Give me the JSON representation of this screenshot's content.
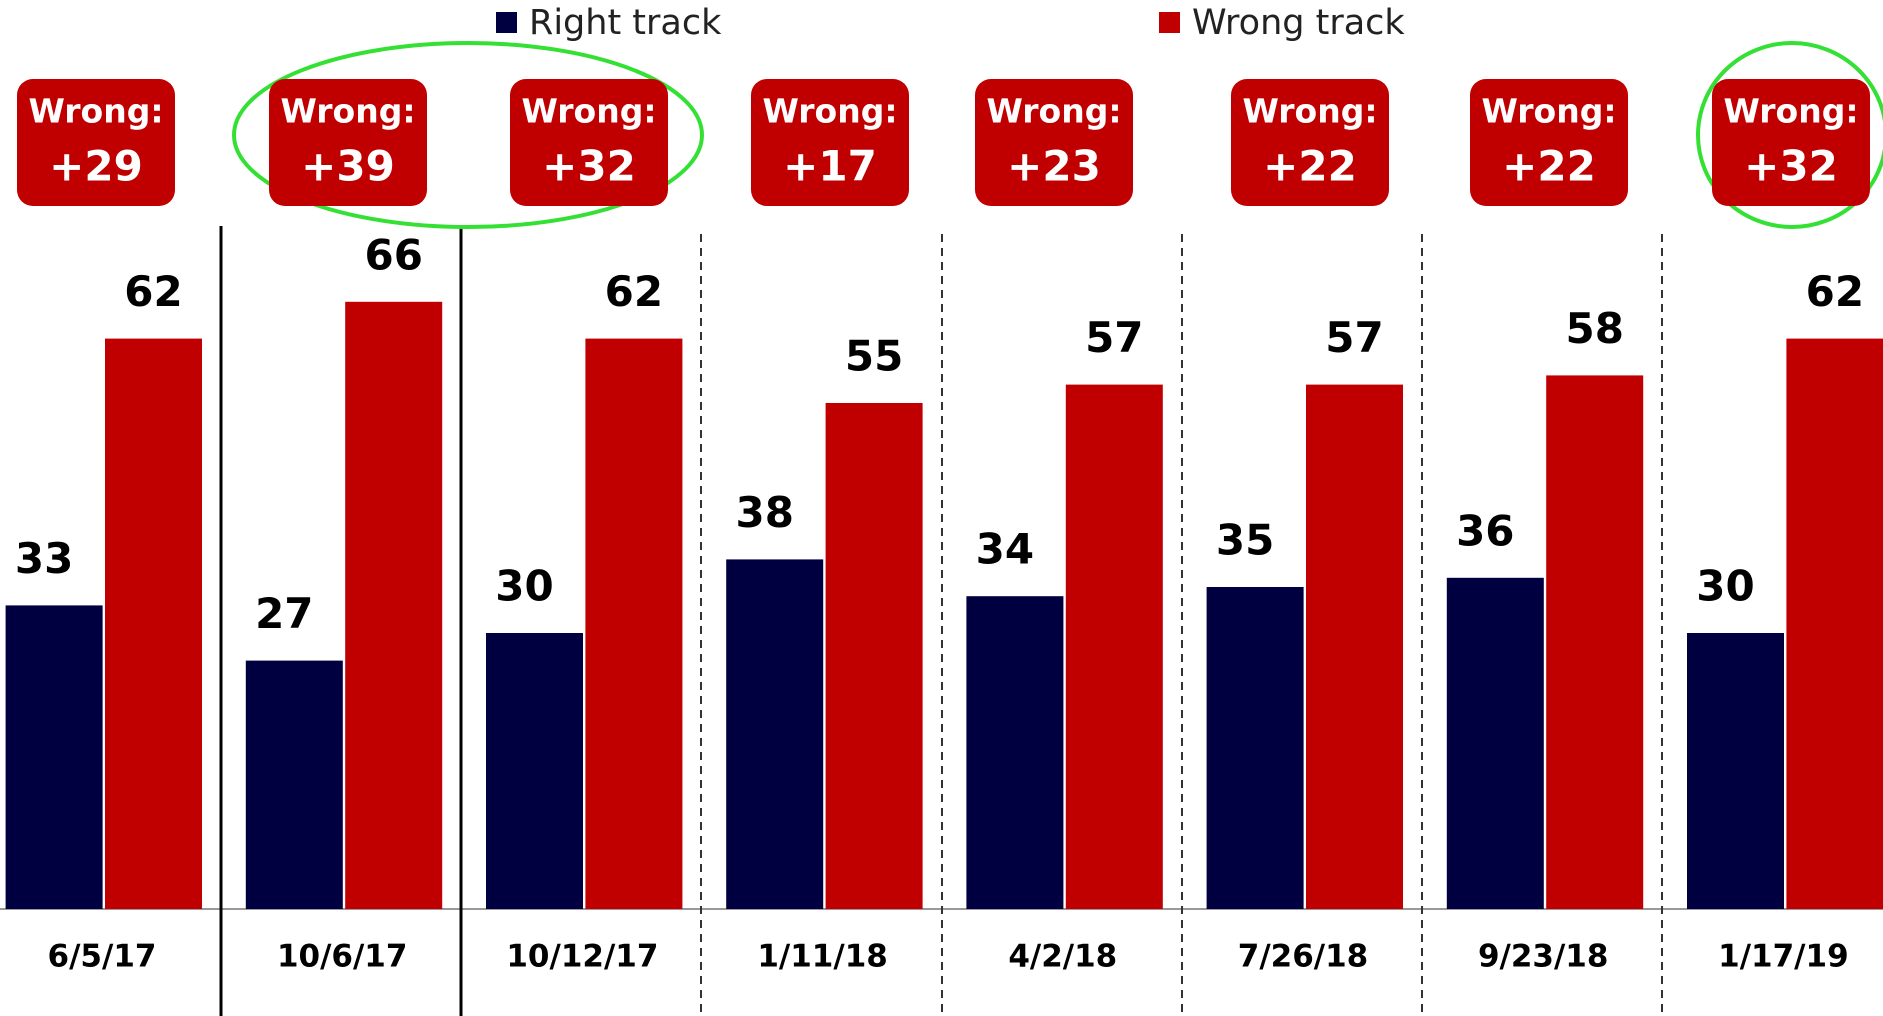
{
  "chart_data": {
    "type": "bar",
    "categories": [
      "6/5/17",
      "10/6/17",
      "10/12/17",
      "1/11/18",
      "4/2/18",
      "7/26/18",
      "9/23/18",
      "1/17/19"
    ],
    "series": [
      {
        "name": "Right track",
        "color": "#000040",
        "values": [
          33,
          27,
          30,
          38,
          34,
          35,
          36,
          30
        ]
      },
      {
        "name": "Wrong track",
        "color": "#c00000",
        "values": [
          62,
          66,
          62,
          55,
          57,
          57,
          58,
          62
        ]
      }
    ],
    "ylim": [
      0,
      80
    ],
    "annotations": [
      {
        "label": "Wrong:",
        "value": "+29"
      },
      {
        "label": "Wrong:",
        "value": "+39"
      },
      {
        "label": "Wrong:",
        "value": "+32"
      },
      {
        "label": "Wrong:",
        "value": "+17"
      },
      {
        "label": "Wrong:",
        "value": "+23"
      },
      {
        "label": "Wrong:",
        "value": "+22"
      },
      {
        "label": "Wrong:",
        "value": "+22"
      },
      {
        "label": "Wrong:",
        "value": "+32"
      }
    ]
  }
}
